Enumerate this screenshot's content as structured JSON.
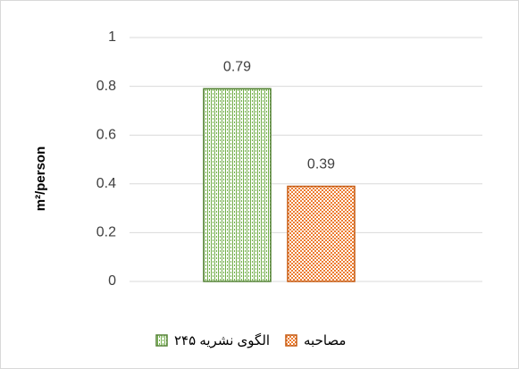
{
  "chart_data": {
    "type": "bar",
    "ylabel": "m²/person",
    "categories": [
      null
    ],
    "series": [
      {
        "name": "الگوی نشریه ۲۴۵",
        "color": "#70ad47",
        "border": "#548235",
        "values": [
          0.79
        ]
      },
      {
        "name": "مصاحبه",
        "color": "#ed7d31",
        "border": "#c55a11",
        "values": [
          0.39
        ]
      }
    ],
    "ylim": [
      0,
      1
    ],
    "yticks": [
      0,
      0.2,
      0.4,
      0.6,
      0.8,
      1
    ],
    "grid": true,
    "legend": "bottom"
  }
}
